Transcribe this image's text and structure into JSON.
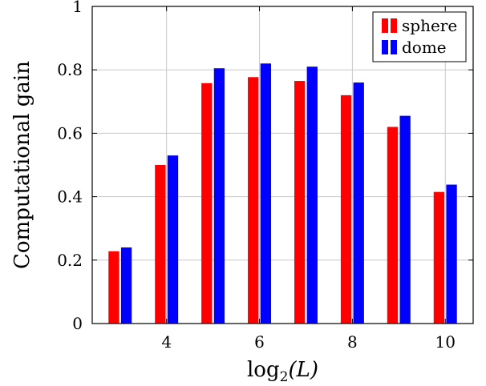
{
  "chart_data": {
    "type": "bar",
    "x": [
      3,
      4,
      5,
      6,
      7,
      8,
      9,
      10
    ],
    "series": [
      {
        "name": "sphere",
        "color": "#ff0000",
        "values": [
          0.228,
          0.5,
          0.758,
          0.777,
          0.765,
          0.72,
          0.62,
          0.415
        ]
      },
      {
        "name": "dome",
        "color": "#0000ff",
        "values": [
          0.24,
          0.53,
          0.805,
          0.82,
          0.81,
          0.76,
          0.655,
          0.438
        ]
      }
    ],
    "xlabel": "log",
    "xlabel_sub": "2",
    "xlabel_arg": "(L)",
    "ylabel": "Computational gain",
    "xticks": [
      4,
      6,
      8,
      10
    ],
    "xtick_labels": [
      "4",
      "6",
      "8",
      "10"
    ],
    "yticks": [
      0,
      0.2,
      0.4,
      0.6,
      0.8,
      1
    ],
    "ytick_labels": [
      "0",
      "0.2",
      "0.4",
      "0.6",
      "0.8",
      "1"
    ],
    "xlim": [
      2.4,
      10.6
    ],
    "ylim": [
      0,
      1
    ],
    "grid": true,
    "legend_position": "top-right"
  }
}
